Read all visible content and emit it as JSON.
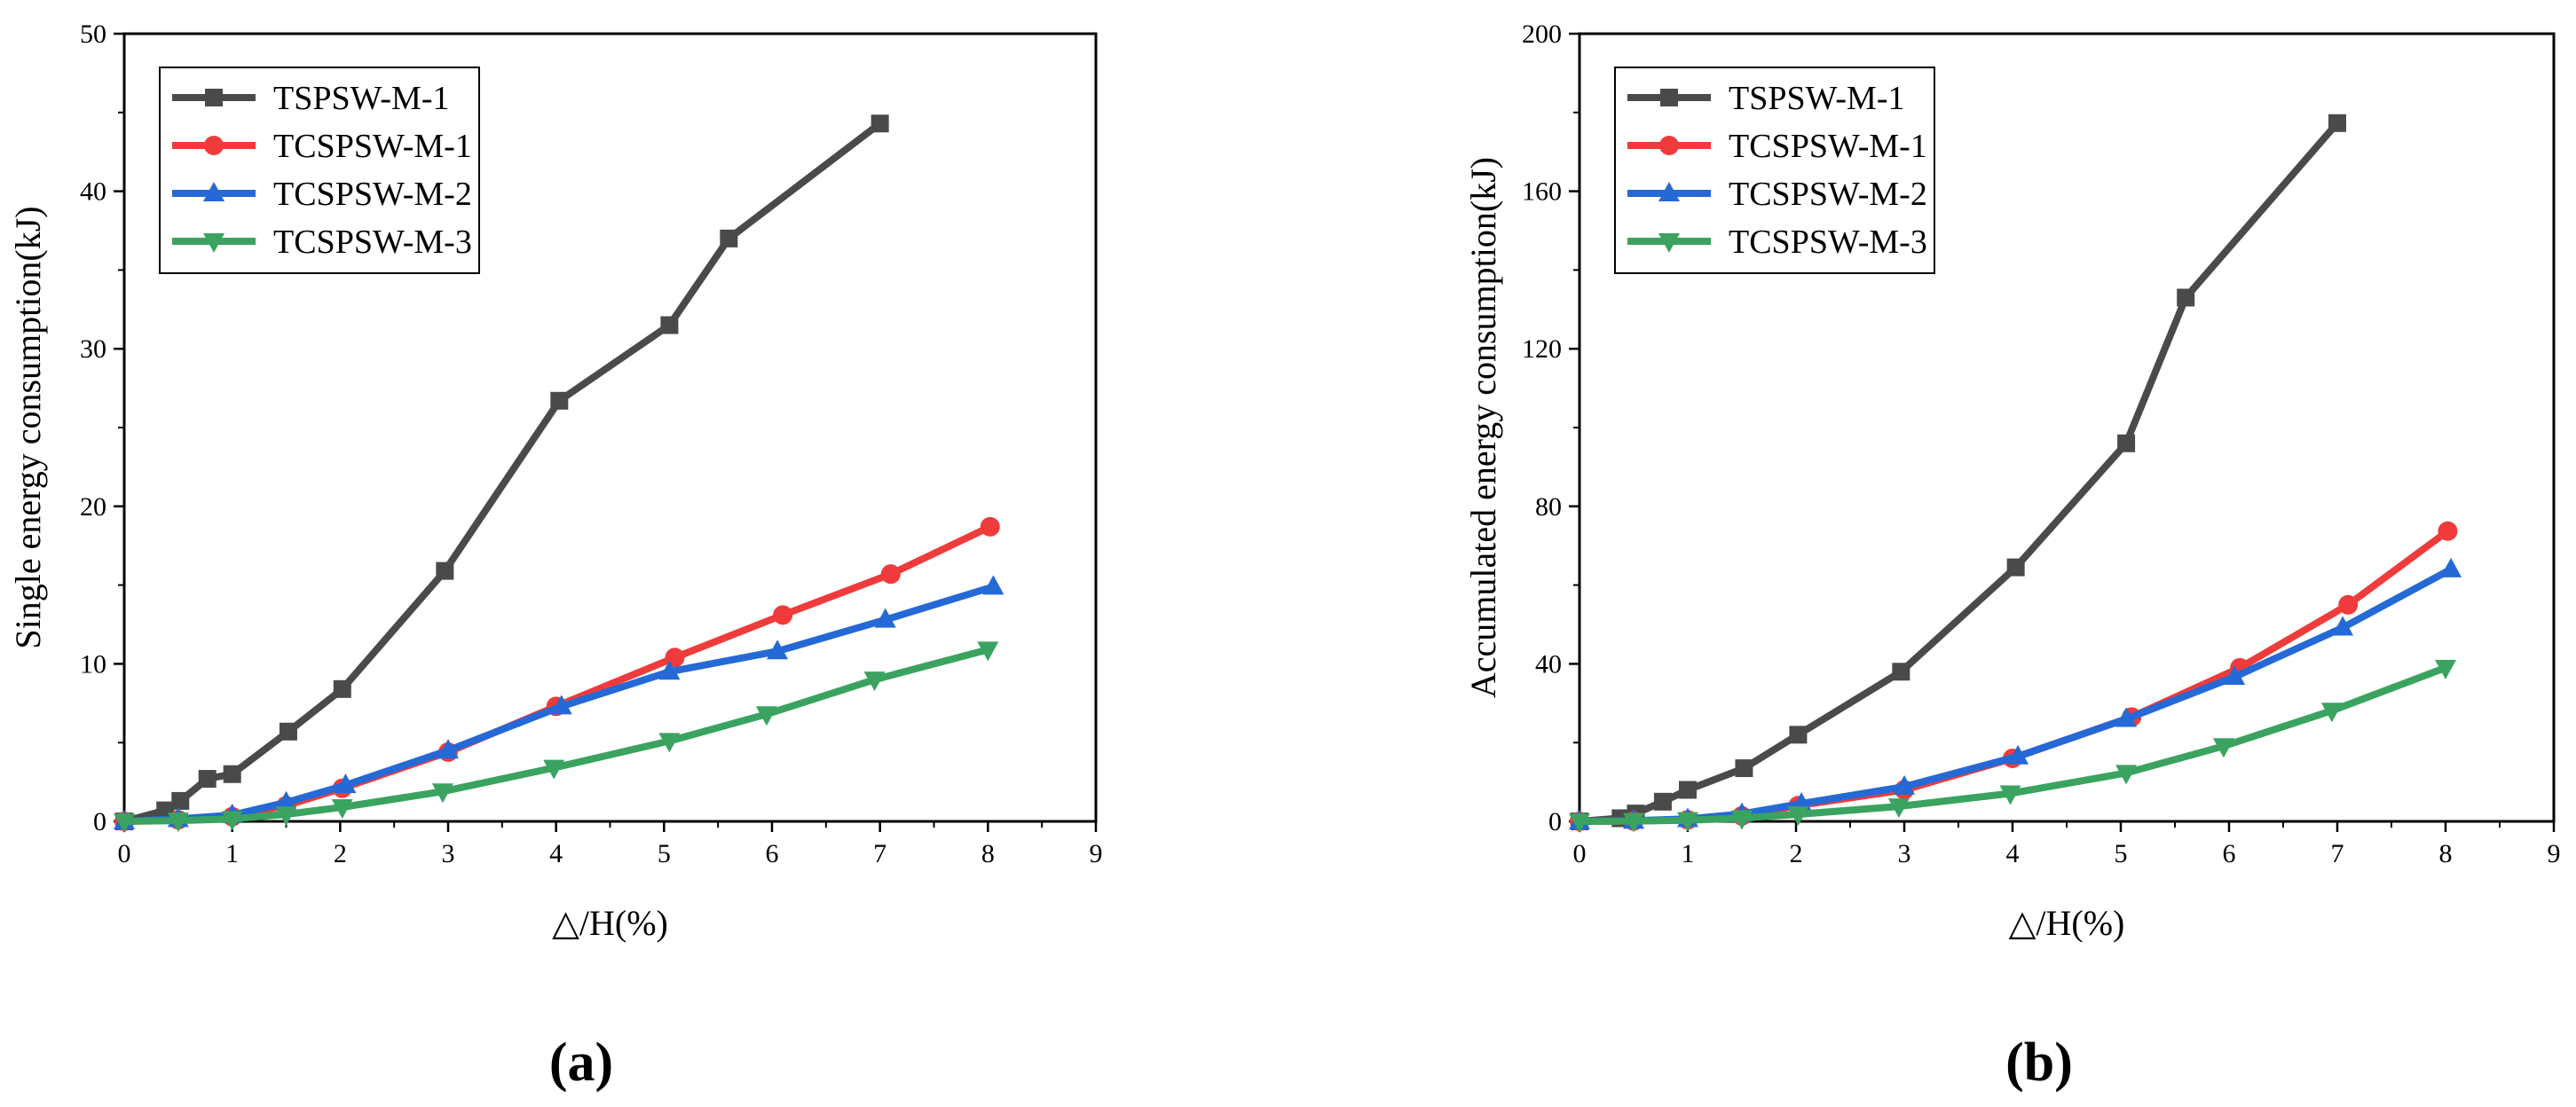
{
  "colors": {
    "TSPSW-M-1": "#4a4a4a",
    "TCSPSW-M-1": "#ef3b3b",
    "TCSPSW-M-2": "#2469d6",
    "TCSPSW-M-3": "#3aa35f"
  },
  "chart_data": [
    {
      "type": "line",
      "panel": "(a)",
      "title": "",
      "xlabel": "△/H(%)",
      "ylabel": "Single energy consumption(kJ)",
      "xlim": [
        0,
        9
      ],
      "ylim": [
        0,
        50
      ],
      "xticks": [
        0,
        1,
        2,
        3,
        4,
        5,
        6,
        7,
        8,
        9
      ],
      "yticks": [
        0,
        10,
        20,
        30,
        40,
        50
      ],
      "legend_position": "top-left",
      "series": [
        {
          "name": "TSPSW-M-1",
          "marker": "square",
          "x": [
            0,
            0.38,
            0.52,
            0.77,
            1.0,
            1.52,
            2.02,
            2.97,
            4.03,
            5.05,
            5.6,
            7.0
          ],
          "y": [
            0,
            0.7,
            1.3,
            2.7,
            3.0,
            5.7,
            8.4,
            15.9,
            26.7,
            31.5,
            37.0,
            44.3
          ]
        },
        {
          "name": "TCSPSW-M-1",
          "marker": "circle",
          "x": [
            0,
            0.5,
            1.0,
            1.5,
            2.02,
            3.0,
            4.0,
            5.1,
            6.1,
            7.1,
            8.02
          ],
          "y": [
            0,
            0.1,
            0.3,
            1.0,
            2.1,
            4.4,
            7.3,
            10.4,
            13.1,
            15.7,
            18.7
          ]
        },
        {
          "name": "TCSPSW-M-2",
          "marker": "triangle-up",
          "x": [
            0,
            0.5,
            1.0,
            1.5,
            2.05,
            3.0,
            4.05,
            5.05,
            6.05,
            7.05,
            8.05
          ],
          "y": [
            0,
            0.15,
            0.4,
            1.2,
            2.3,
            4.5,
            7.3,
            9.5,
            10.8,
            12.8,
            14.9
          ]
        },
        {
          "name": "TCSPSW-M-3",
          "marker": "triangle-down",
          "x": [
            0,
            0.5,
            1.0,
            1.5,
            2.02,
            2.95,
            3.98,
            5.05,
            5.95,
            6.95,
            8.0
          ],
          "y": [
            0,
            0.05,
            0.15,
            0.45,
            0.9,
            1.9,
            3.4,
            5.1,
            6.8,
            9.0,
            10.9
          ]
        }
      ]
    },
    {
      "type": "line",
      "panel": "(b)",
      "title": "",
      "xlabel": "△/H(%)",
      "ylabel": "Accumulated energy consumption(kJ)",
      "xlim": [
        0,
        9
      ],
      "ylim": [
        0,
        200
      ],
      "xticks": [
        0,
        1,
        2,
        3,
        4,
        5,
        6,
        7,
        8,
        9
      ],
      "yticks": [
        0,
        40,
        80,
        120,
        160,
        200
      ],
      "legend_position": "top-left",
      "series": [
        {
          "name": "TSPSW-M-1",
          "marker": "square",
          "x": [
            0,
            0.38,
            0.52,
            0.77,
            1.0,
            1.52,
            2.02,
            2.97,
            4.03,
            5.05,
            5.6,
            7.0
          ],
          "y": [
            0,
            0.8,
            2.0,
            5.0,
            8.0,
            13.5,
            22.0,
            38.0,
            64.5,
            96.0,
            133.0,
            177.3
          ]
        },
        {
          "name": "TCSPSW-M-1",
          "marker": "circle",
          "x": [
            0,
            0.5,
            1.0,
            1.5,
            2.02,
            3.0,
            4.0,
            5.1,
            6.1,
            7.1,
            8.02
          ],
          "y": [
            0,
            0.1,
            0.4,
            1.4,
            4.0,
            8.0,
            16.0,
            26.5,
            39.0,
            55.0,
            73.7
          ]
        },
        {
          "name": "TCSPSW-M-2",
          "marker": "triangle-up",
          "x": [
            0,
            0.5,
            1.0,
            1.5,
            2.05,
            3.0,
            4.05,
            5.05,
            6.05,
            7.05,
            8.05
          ],
          "y": [
            0,
            0.15,
            0.6,
            1.9,
            4.5,
            8.8,
            16.5,
            26.0,
            36.7,
            49.2,
            64.0
          ]
        },
        {
          "name": "TCSPSW-M-3",
          "marker": "triangle-down",
          "x": [
            0,
            0.5,
            1.0,
            1.5,
            2.02,
            2.95,
            3.98,
            5.05,
            5.95,
            6.95,
            8.0
          ],
          "y": [
            0,
            0.1,
            0.3,
            0.8,
            1.8,
            3.8,
            7.1,
            12.3,
            19.1,
            28.1,
            39.0
          ]
        }
      ]
    }
  ]
}
